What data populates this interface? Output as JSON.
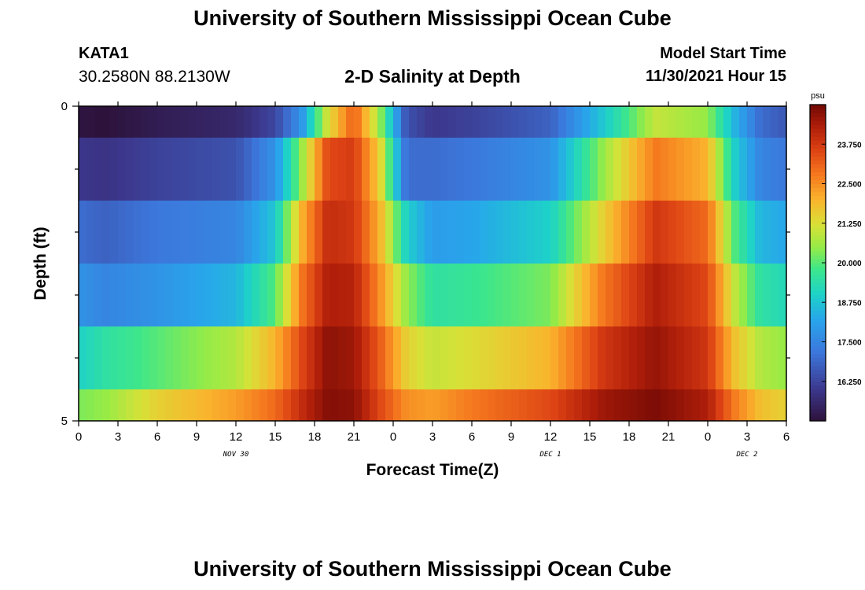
{
  "header": {
    "title": "University of Southern Mississippi Ocean Cube",
    "station_id": "KATA1",
    "coords": "30.2580N  88.2130W",
    "subtitle": "2-D Salinity at Depth",
    "model_label": "Model Start Time",
    "model_time": "11/30/2021 Hour 15"
  },
  "footer": {
    "title": "University of Southern Mississippi Ocean Cube"
  },
  "chart_data": {
    "type": "heatmap",
    "title": "2-D Salinity at Depth",
    "xlabel": "Forecast Time(Z)",
    "ylabel": "Depth (ft)",
    "xlim": [
      0,
      54
    ],
    "ylim": [
      0,
      5
    ],
    "x_tick_values": [
      0,
      3,
      6,
      9,
      12,
      15,
      18,
      21,
      24,
      27,
      30,
      33,
      36,
      39,
      42,
      45,
      48,
      51,
      54
    ],
    "x_tick_labels": [
      "0",
      "3",
      "6",
      "9",
      "12",
      "15",
      "18",
      "21",
      "0",
      "3",
      "6",
      "9",
      "12",
      "15",
      "18",
      "21",
      "0",
      "3",
      "6"
    ],
    "y_tick_values": [
      0,
      5
    ],
    "y_tick_labels": [
      "0",
      "5"
    ],
    "date_labels": [
      {
        "label": "NOV 30",
        "x": 12
      },
      {
        "label": "DEC 1",
        "x": 36
      },
      {
        "label": "DEC 2",
        "x": 51
      }
    ],
    "depth_bands": [
      {
        "from": 0,
        "to": 0.5
      },
      {
        "from": 0.5,
        "to": 1.5
      },
      {
        "from": 1.5,
        "to": 2.5
      },
      {
        "from": 2.5,
        "to": 3.5
      },
      {
        "from": 3.5,
        "to": 4.5
      },
      {
        "from": 4.5,
        "to": 5
      }
    ],
    "control_hours": [
      0,
      2,
      6,
      12,
      15,
      17,
      19,
      21,
      23,
      25,
      27,
      30,
      36,
      40,
      44,
      48,
      50,
      52,
      54
    ],
    "salinity_profiles": [
      [
        15.1,
        15.0,
        15.3,
        15.6,
        16.3,
        17.8,
        21.2,
        23.2,
        20.5,
        16.5,
        16.0,
        16.2,
        16.8,
        18.8,
        21.0,
        20.5,
        18.5,
        17.0,
        16.6
      ],
      [
        16.0,
        15.9,
        16.2,
        16.5,
        17.8,
        20.5,
        23.5,
        23.7,
        21.5,
        17.0,
        17.0,
        17.2,
        17.8,
        20.5,
        22.8,
        22.0,
        19.0,
        17.5,
        17.2
      ],
      [
        17.0,
        16.8,
        17.2,
        17.5,
        18.8,
        22.0,
        24.0,
        23.8,
        22.0,
        19.0,
        18.0,
        18.2,
        19.0,
        21.5,
        23.8,
        23.0,
        20.0,
        18.5,
        18.2
      ],
      [
        17.8,
        17.5,
        17.8,
        18.5,
        20.0,
        22.8,
        24.3,
        24.2,
        22.5,
        20.5,
        19.5,
        19.7,
        20.3,
        22.8,
        24.3,
        23.5,
        21.0,
        19.5,
        19.2
      ],
      [
        19.0,
        19.5,
        20.0,
        20.8,
        22.0,
        23.5,
        24.7,
        24.5,
        23.2,
        21.5,
        21.0,
        21.3,
        22.0,
        23.8,
        24.6,
        23.8,
        21.8,
        20.8,
        20.5
      ],
      [
        20.3,
        20.5,
        21.5,
        22.3,
        23.0,
        24.0,
        24.8,
        24.7,
        23.5,
        22.5,
        22.3,
        22.8,
        23.5,
        24.5,
        24.9,
        24.3,
        22.8,
        21.8,
        21.5
      ]
    ],
    "colorbar": {
      "unit": "psu",
      "min": 15.0,
      "max": 25.0,
      "tick_values": [
        16.25,
        17.5,
        18.75,
        20.0,
        21.25,
        22.5,
        23.75
      ],
      "tick_labels": [
        "16.250",
        "17.500",
        "18.750",
        "20.000",
        "21.250",
        "22.500",
        "23.750"
      ]
    }
  }
}
